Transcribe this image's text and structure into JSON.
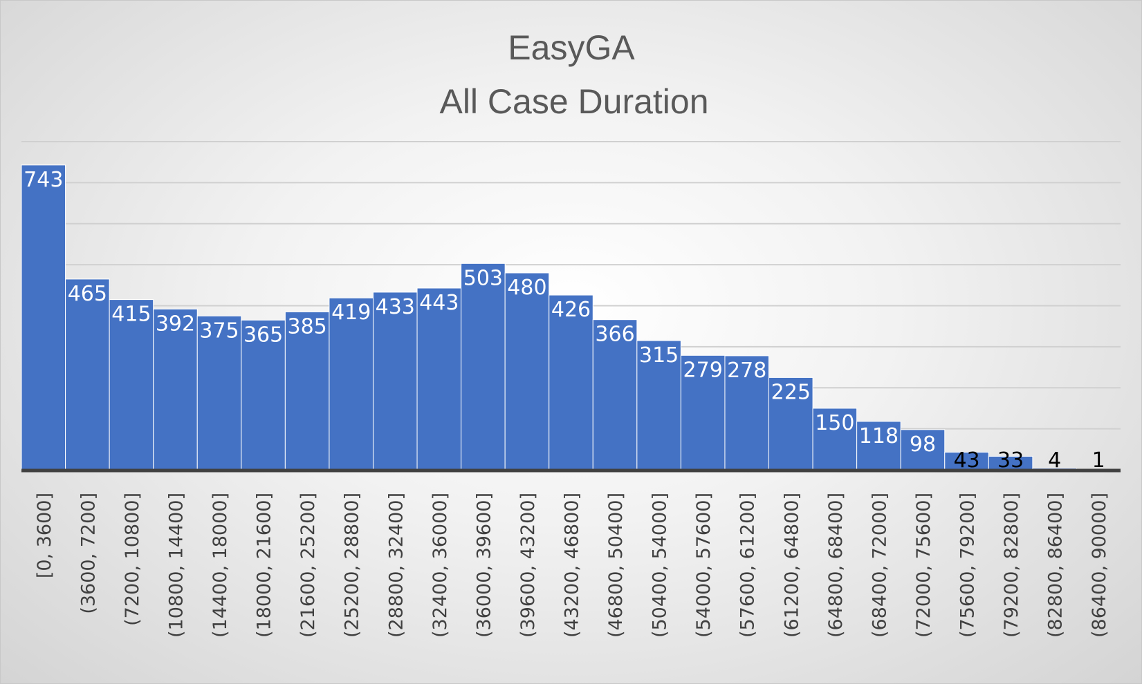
{
  "chart_data": {
    "type": "bar",
    "title_lines": [
      "EasyGA",
      "All Case Duration"
    ],
    "xlabel": "",
    "ylabel": "",
    "ylim": [
      0,
      800
    ],
    "grid": true,
    "bar_color": "#4472C4",
    "label_color_inside": "#ffffff",
    "label_color_outside": "#000000",
    "axis_color": "#404040",
    "gridline_color": "#d0d0d0",
    "categories": [
      "[0, 3600]",
      "(3600, 7200]",
      "(7200, 10800]",
      "(10800, 14400]",
      "(14400, 18000]",
      "(18000, 21600]",
      "(21600, 25200]",
      "(25200, 28800]",
      "(28800, 32400]",
      "(32400, 36000]",
      "(36000, 39600]",
      "(39600, 43200]",
      "(43200, 46800]",
      "(46800, 50400]",
      "(50400, 54000]",
      "(54000, 57600]",
      "(57600, 61200]",
      "(61200, 64800]",
      "(64800, 68400]",
      "(68400, 72000]",
      "(72000, 75600]",
      "(75600, 79200]",
      "(79200, 82800]",
      "(82800, 86400]",
      "(86400, 90000]"
    ],
    "values": [
      743,
      465,
      415,
      392,
      375,
      365,
      385,
      419,
      433,
      443,
      503,
      480,
      426,
      366,
      315,
      279,
      278,
      225,
      150,
      118,
      98,
      43,
      33,
      4,
      1
    ]
  }
}
